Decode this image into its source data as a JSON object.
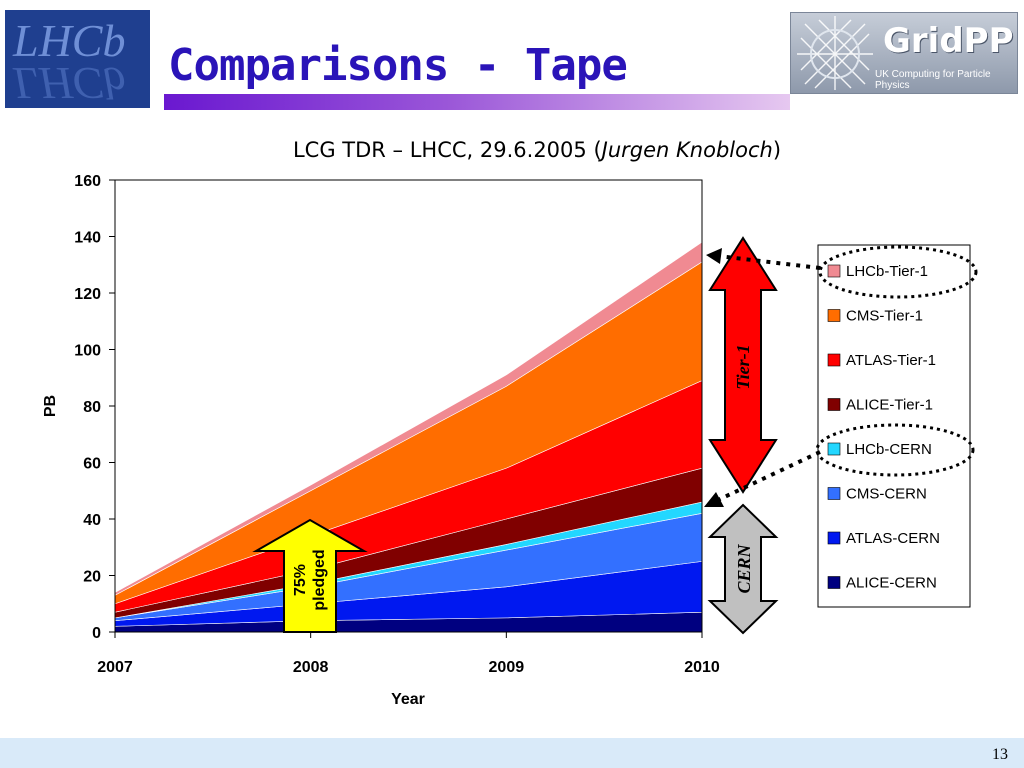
{
  "logo_left": {
    "text": "LHCb",
    "name": "lhcb-logo"
  },
  "logo_right": {
    "main": "GridPP",
    "sub": "UK Computing for Particle Physics"
  },
  "slide": {
    "title": "Comparisons - Tape",
    "page_number": "13"
  },
  "colors": {
    "LHCb-Tier-1": "#f08a92",
    "CMS-Tier-1": "#ff6d00",
    "ATLAS-Tier-1": "#ff0000",
    "ALICE-Tier-1": "#800000",
    "LHCb-CERN": "#23d7ff",
    "CMS-CERN": "#3370ff",
    "ATLAS-CERN": "#0018f0",
    "ALICE-CERN": "#000080",
    "tier1_arrow": "#ff0000",
    "cern_arrow": "#c0c0c0",
    "pledge_arrow": "#ffff00"
  },
  "chart_data": {
    "type": "area",
    "stacked": true,
    "subtitle_plain": "LCG TDR – LHCC, 29.6.2005 (",
    "subtitle_italic": "Jurgen Knobloch",
    "subtitle_end": ")",
    "x": [
      2007,
      2008,
      2009,
      2010
    ],
    "xlabel": "Year",
    "ylabel": "PB",
    "ylim": [
      0,
      160
    ],
    "yticks": [
      0,
      20,
      40,
      60,
      80,
      100,
      120,
      140,
      160
    ],
    "grid": false,
    "legend_position": "right",
    "series": [
      {
        "name": "ALICE-CERN",
        "values": [
          2,
          4,
          5,
          7
        ]
      },
      {
        "name": "ATLAS-CERN",
        "values": [
          2,
          6,
          11,
          18
        ]
      },
      {
        "name": "CMS-CERN",
        "values": [
          1,
          6,
          13,
          17
        ]
      },
      {
        "name": "LHCb-CERN",
        "values": [
          0,
          1,
          2,
          4
        ]
      },
      {
        "name": "ALICE-Tier-1",
        "values": [
          2,
          5,
          9,
          12
        ]
      },
      {
        "name": "ATLAS-Tier-1",
        "values": [
          3,
          12,
          18,
          31
        ]
      },
      {
        "name": "CMS-Tier-1",
        "values": [
          3,
          16,
          29,
          42
        ]
      },
      {
        "name": "LHCb-Tier-1",
        "values": [
          1,
          2,
          4,
          7
        ]
      }
    ],
    "legend_order": [
      "LHCb-Tier-1",
      "CMS-Tier-1",
      "ATLAS-Tier-1",
      "ALICE-Tier-1",
      "LHCb-CERN",
      "CMS-CERN",
      "ATLAS-CERN",
      "ALICE-CERN"
    ],
    "annotations": {
      "tier1": "Tier-1",
      "cern": "CERN",
      "pledge_line1": "75%",
      "pledge_line2": "pledged"
    }
  }
}
